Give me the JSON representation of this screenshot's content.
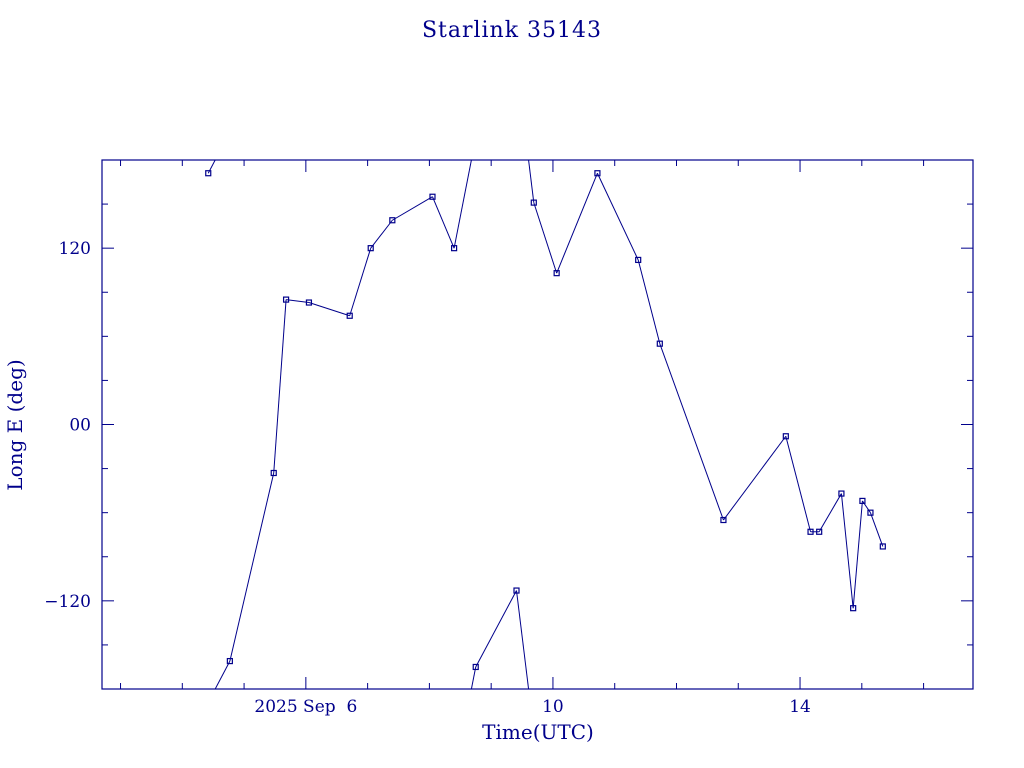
{
  "chart_data": {
    "type": "line",
    "title": "Starlink 35143",
    "xlabel": "Time(UTC)",
    "ylabel": "Long E (deg)",
    "x_unit": "days of September 2025",
    "xlim": [
      2.7,
      16.8
    ],
    "ylim": [
      -180,
      180
    ],
    "x_ticks": [
      {
        "value": 6,
        "label": "2025 Sep  6"
      },
      {
        "value": 10,
        "label": "10"
      },
      {
        "value": 14,
        "label": "14"
      }
    ],
    "y_ticks": [
      {
        "value": 120,
        "label": "120"
      },
      {
        "value": 0,
        "label": "00"
      },
      {
        "value": -120,
        "label": "−120"
      }
    ],
    "wrap_longitude": true,
    "color": "#00008b",
    "marker": "square",
    "grid": false,
    "series": [
      {
        "points": [
          {
            "x": 4.42,
            "y": 171
          },
          {
            "x": 4.77,
            "y": -161
          },
          {
            "x": 5.48,
            "y": -33
          },
          {
            "x": 5.68,
            "y": 85
          },
          {
            "x": 6.05,
            "y": 83
          },
          {
            "x": 6.71,
            "y": 74
          },
          {
            "x": 7.05,
            "y": 120
          },
          {
            "x": 7.4,
            "y": 139
          },
          {
            "x": 8.05,
            "y": 155
          },
          {
            "x": 8.4,
            "y": 120
          },
          {
            "x": 8.75,
            "y": -165
          },
          {
            "x": 9.41,
            "y": -113
          },
          {
            "x": 9.69,
            "y": 151
          },
          {
            "x": 10.06,
            "y": 103
          },
          {
            "x": 10.72,
            "y": 171
          },
          {
            "x": 11.38,
            "y": 112
          },
          {
            "x": 11.73,
            "y": 55
          },
          {
            "x": 12.76,
            "y": -65
          },
          {
            "x": 13.77,
            "y": -8
          },
          {
            "x": 14.17,
            "y": -73
          },
          {
            "x": 14.31,
            "y": -73
          },
          {
            "x": 14.67,
            "y": -47
          },
          {
            "x": 14.86,
            "y": -125
          },
          {
            "x": 15.01,
            "y": -52
          },
          {
            "x": 15.14,
            "y": -60
          },
          {
            "x": 15.34,
            "y": -83
          }
        ]
      }
    ]
  }
}
